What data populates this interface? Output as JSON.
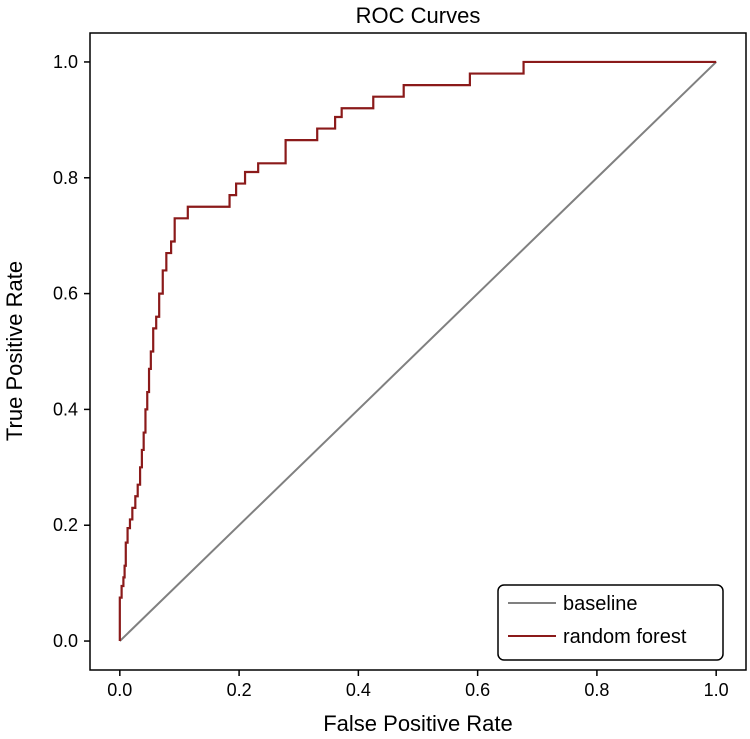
{
  "chart_data": {
    "type": "line",
    "title": "ROC Curves",
    "xlabel": "False Positive Rate",
    "ylabel": "True Positive Rate",
    "xlim": [
      -0.05,
      1.05
    ],
    "ylim": [
      -0.05,
      1.05
    ],
    "xticks": [
      0.0,
      0.2,
      0.4,
      0.6,
      0.8,
      1.0
    ],
    "yticks": [
      0.0,
      0.2,
      0.4,
      0.6,
      0.8,
      1.0
    ],
    "xtick_labels": [
      "0.0",
      "0.2",
      "0.4",
      "0.6",
      "0.8",
      "1.0"
    ],
    "ytick_labels": [
      "0.0",
      "0.2",
      "0.4",
      "0.6",
      "0.8",
      "1.0"
    ],
    "grid": false,
    "legend_position": "bottom-right",
    "series": [
      {
        "name": "baseline",
        "color": "#808080",
        "x": [
          0.0,
          1.0
        ],
        "y": [
          0.0,
          1.0
        ]
      },
      {
        "name": "random forest",
        "color": "#8b1a1a",
        "step": true,
        "x": [
          0.0,
          0.0,
          0.003,
          0.006,
          0.008,
          0.01,
          0.013,
          0.017,
          0.021,
          0.026,
          0.03,
          0.034,
          0.037,
          0.04,
          0.043,
          0.046,
          0.049,
          0.052,
          0.056,
          0.061,
          0.066,
          0.072,
          0.078,
          0.086,
          0.092,
          0.1,
          0.114,
          0.184,
          0.195,
          0.21,
          0.232,
          0.252,
          0.278,
          0.308,
          0.331,
          0.361,
          0.372,
          0.393,
          0.425,
          0.43,
          0.476,
          0.514,
          0.587,
          0.677,
          1.0
        ],
        "y": [
          0.0,
          0.075,
          0.095,
          0.11,
          0.13,
          0.17,
          0.195,
          0.21,
          0.23,
          0.25,
          0.27,
          0.3,
          0.33,
          0.36,
          0.4,
          0.43,
          0.47,
          0.5,
          0.54,
          0.56,
          0.6,
          0.64,
          0.67,
          0.69,
          0.73,
          0.73,
          0.75,
          0.77,
          0.79,
          0.81,
          0.825,
          0.825,
          0.865,
          0.865,
          0.885,
          0.905,
          0.92,
          0.92,
          0.94,
          0.94,
          0.96,
          0.96,
          0.98,
          1.0,
          1.0
        ]
      }
    ]
  }
}
